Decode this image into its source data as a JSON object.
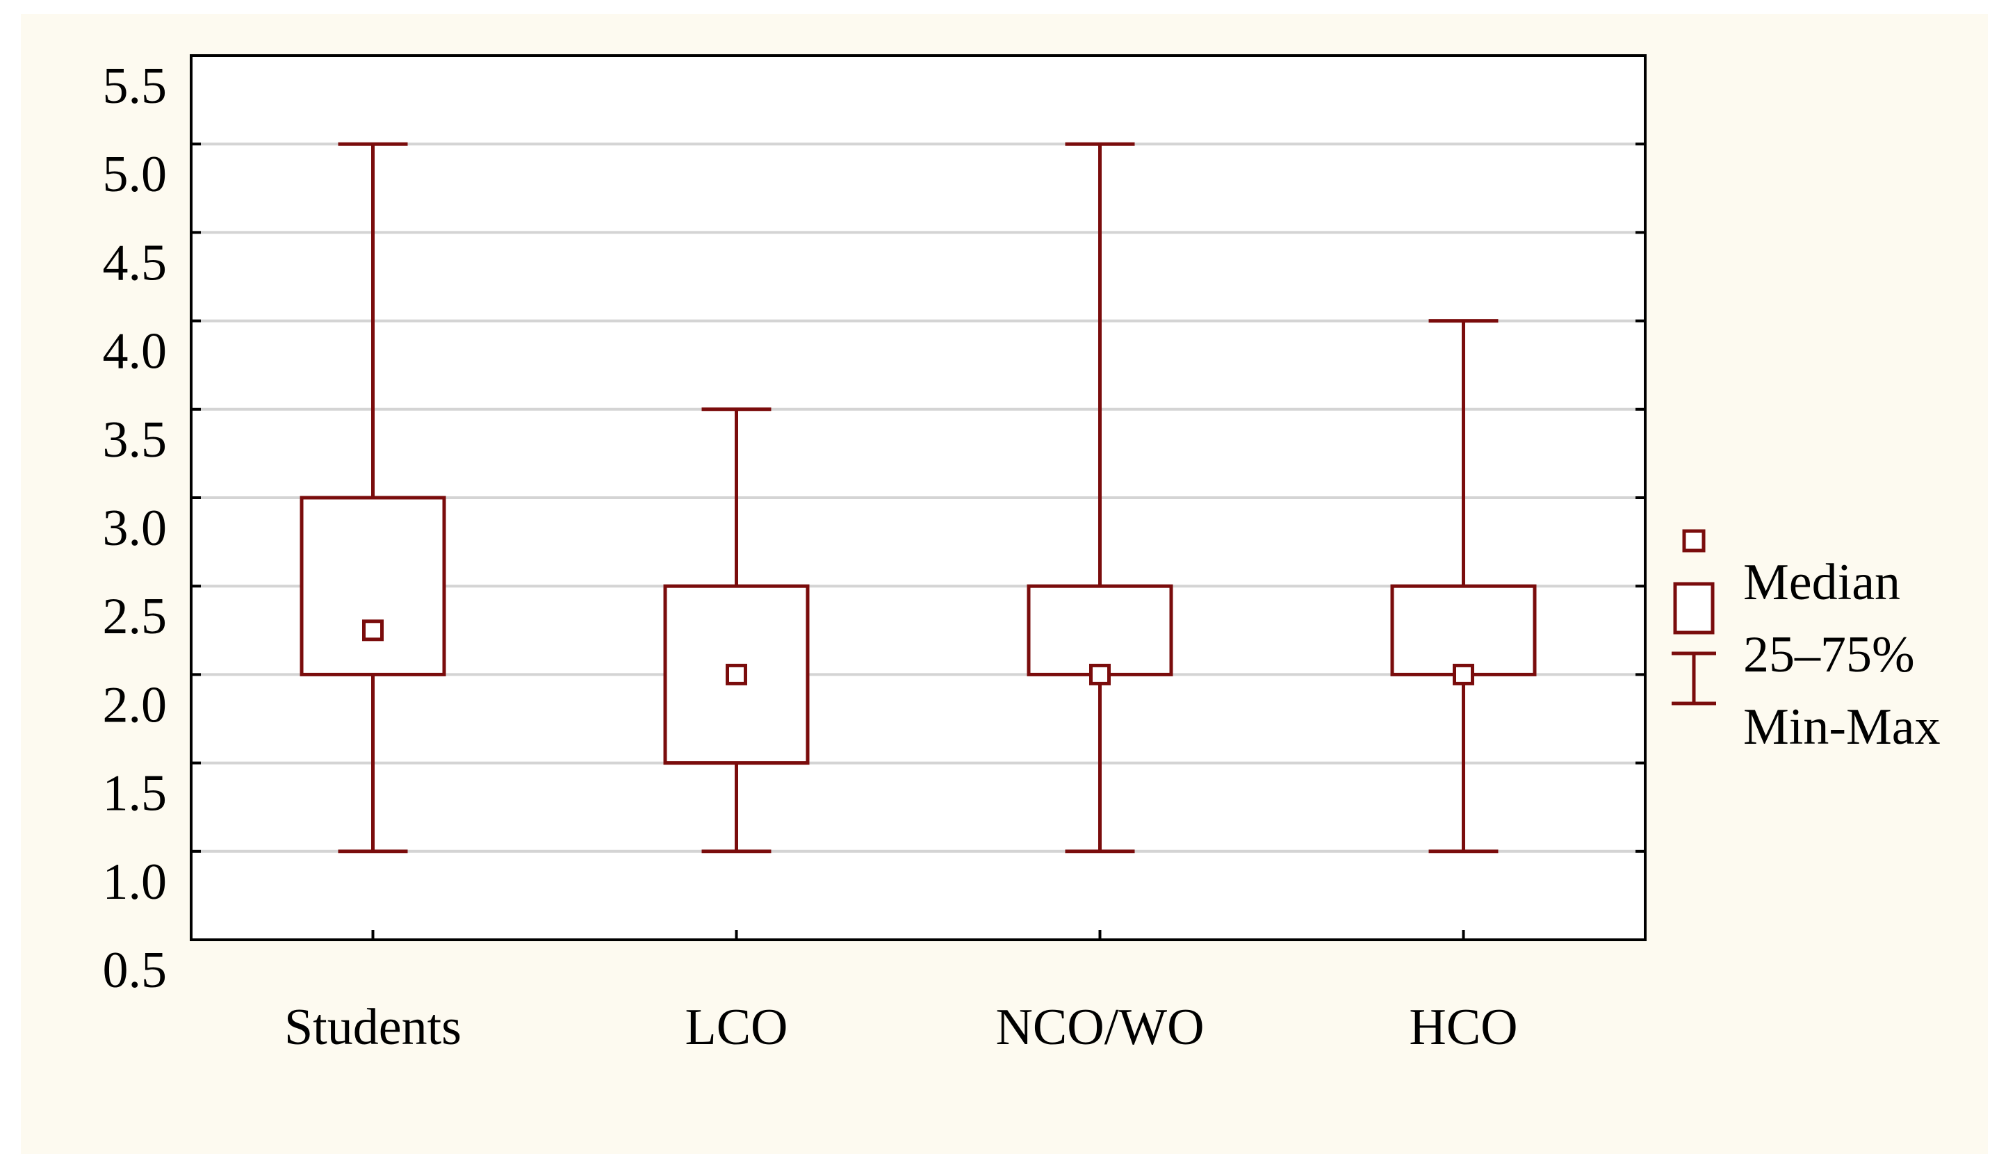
{
  "colors": {
    "background": "#fdfaf0",
    "plot_background": "#ffffff",
    "box": "#7a0c0c",
    "grid": "#d4d4d4",
    "axis": "#000000"
  },
  "chart_data": {
    "type": "boxplot",
    "title": "",
    "xlabel": "",
    "ylabel": "",
    "ylim": [
      0.5,
      5.5
    ],
    "y_ticks": [
      "5.5",
      "5.0",
      "4.5",
      "4.0",
      "3.5",
      "3.0",
      "2.5",
      "2.0",
      "1.5",
      "1.0",
      "0.5"
    ],
    "grid": true,
    "legend_position": "right",
    "categories": [
      "Students",
      "LCO",
      "NCO/WO",
      "HCO"
    ],
    "series": [
      {
        "name": "Students",
        "median": 2.25,
        "q1": 2.0,
        "q3": 3.0,
        "min": 1.0,
        "max": 5.0
      },
      {
        "name": "LCO",
        "median": 2.0,
        "q1": 1.5,
        "q3": 2.5,
        "min": 1.0,
        "max": 3.5
      },
      {
        "name": "NCO/WO",
        "median": 2.0,
        "q1": 2.0,
        "q3": 2.5,
        "min": 1.0,
        "max": 5.0
      },
      {
        "name": "HCO",
        "median": 2.0,
        "q1": 2.0,
        "q3": 2.5,
        "min": 1.0,
        "max": 4.0
      }
    ],
    "legend": [
      "Median",
      "25–75%",
      "Min-Max"
    ]
  }
}
